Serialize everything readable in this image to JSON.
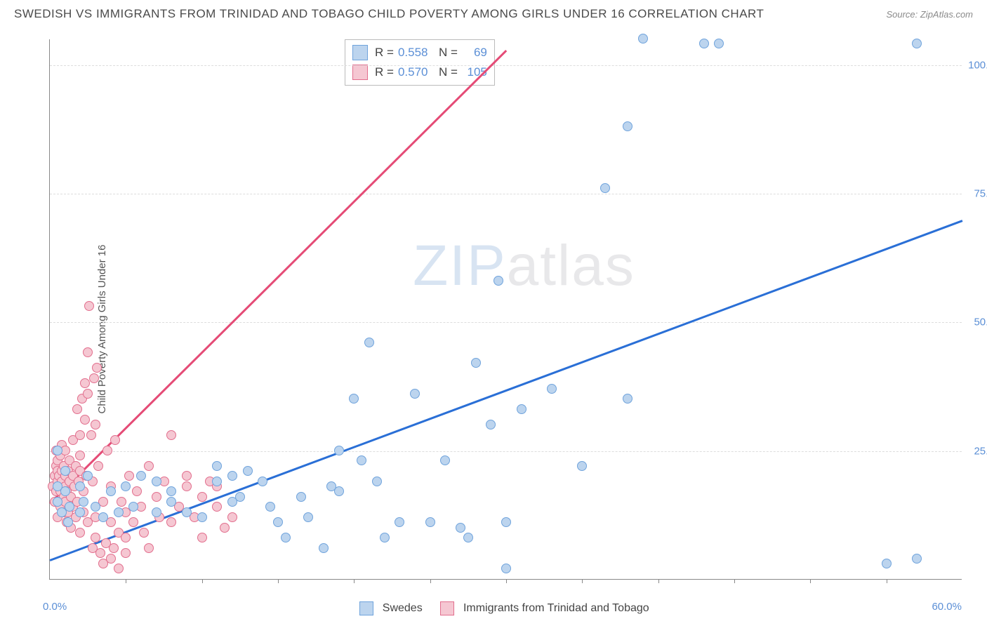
{
  "title": "SWEDISH VS IMMIGRANTS FROM TRINIDAD AND TOBAGO CHILD POVERTY AMONG GIRLS UNDER 16 CORRELATION CHART",
  "source": "Source: ZipAtlas.com",
  "y_axis_label": "Child Poverty Among Girls Under 16",
  "watermark_a": "ZIP",
  "watermark_b": "atlas",
  "chart": {
    "type": "scatter",
    "xlim": [
      0,
      60
    ],
    "ylim": [
      0,
      105
    ],
    "y_ticks": [
      25,
      50,
      75,
      100
    ],
    "y_tick_labels": [
      "25.0%",
      "50.0%",
      "75.0%",
      "100.0%"
    ],
    "x_minor_start": 5,
    "x_minor_step": 5,
    "x_first_label": "0.0%",
    "x_last_label": "60.0%",
    "x_tick_positions": [
      5,
      10,
      15,
      20,
      25,
      30,
      35,
      40,
      45,
      50,
      55
    ],
    "grid_color": "#dddddd",
    "axis_color": "#888888",
    "background": "#ffffff",
    "marker_size": 14,
    "series": [
      {
        "name": "Swedes",
        "color_fill": "#bcd4ee",
        "color_stroke": "#6fa3dc",
        "r_value": "0.558",
        "n_value": "69",
        "trend": {
          "x1": 0,
          "y1": 4,
          "x2": 60,
          "y2": 70,
          "color": "#2a6fd6",
          "width": 2.5
        },
        "points": [
          [
            0.5,
            18
          ],
          [
            0.5,
            25
          ],
          [
            0.5,
            15
          ],
          [
            0.8,
            13
          ],
          [
            1,
            17
          ],
          [
            1,
            21
          ],
          [
            1.2,
            11
          ],
          [
            1.3,
            14
          ],
          [
            2,
            18
          ],
          [
            2,
            13
          ],
          [
            2.2,
            15
          ],
          [
            2.5,
            20
          ],
          [
            3,
            14
          ],
          [
            3.5,
            12
          ],
          [
            4,
            17
          ],
          [
            4.5,
            13
          ],
          [
            5,
            18
          ],
          [
            5.5,
            14
          ],
          [
            6,
            20
          ],
          [
            7,
            19
          ],
          [
            7,
            13
          ],
          [
            8,
            15
          ],
          [
            8,
            17
          ],
          [
            9,
            13
          ],
          [
            10,
            12
          ],
          [
            11,
            19
          ],
          [
            11,
            22
          ],
          [
            12,
            20
          ],
          [
            12,
            15
          ],
          [
            12.5,
            16
          ],
          [
            13,
            21
          ],
          [
            14,
            19
          ],
          [
            14.5,
            14
          ],
          [
            15,
            11
          ],
          [
            15.5,
            8
          ],
          [
            16.5,
            16
          ],
          [
            17,
            12
          ],
          [
            18,
            6
          ],
          [
            18.5,
            18
          ],
          [
            19,
            17
          ],
          [
            19,
            25
          ],
          [
            20,
            35
          ],
          [
            20.5,
            23
          ],
          [
            21,
            46
          ],
          [
            21.5,
            19
          ],
          [
            22,
            8
          ],
          [
            23,
            11
          ],
          [
            24,
            36
          ],
          [
            25,
            11
          ],
          [
            26,
            23
          ],
          [
            27,
            10
          ],
          [
            27.5,
            8
          ],
          [
            28,
            42
          ],
          [
            29,
            30
          ],
          [
            29.5,
            58
          ],
          [
            30,
            11
          ],
          [
            30,
            2
          ],
          [
            31,
            33
          ],
          [
            33,
            37
          ],
          [
            35,
            22
          ],
          [
            36.5,
            76
          ],
          [
            38,
            35
          ],
          [
            38,
            88
          ],
          [
            39,
            105
          ],
          [
            43,
            104
          ],
          [
            44,
            104
          ],
          [
            55,
            3
          ],
          [
            57,
            104
          ],
          [
            57,
            4
          ]
        ]
      },
      {
        "name": "Immigrants from Trinidad and Tobago",
        "color_fill": "#f5c7d2",
        "color_stroke": "#e26e8d",
        "r_value": "0.570",
        "n_value": "105",
        "trend": {
          "x1": 0,
          "y1": 15,
          "x2": 30,
          "y2": 103,
          "color": "#e54b76",
          "width": 2.5
        },
        "points": [
          [
            0.2,
            18
          ],
          [
            0.3,
            15
          ],
          [
            0.3,
            20
          ],
          [
            0.4,
            17
          ],
          [
            0.4,
            22
          ],
          [
            0.4,
            25
          ],
          [
            0.5,
            12
          ],
          [
            0.5,
            19
          ],
          [
            0.5,
            21
          ],
          [
            0.5,
            23
          ],
          [
            0.6,
            15
          ],
          [
            0.6,
            18
          ],
          [
            0.6,
            20
          ],
          [
            0.7,
            14
          ],
          [
            0.7,
            24
          ],
          [
            0.7,
            17
          ],
          [
            0.8,
            19
          ],
          [
            0.8,
            21
          ],
          [
            0.8,
            26
          ],
          [
            0.9,
            16
          ],
          [
            0.9,
            13
          ],
          [
            0.9,
            22
          ],
          [
            1,
            18
          ],
          [
            1,
            20
          ],
          [
            1,
            25
          ],
          [
            1,
            15
          ],
          [
            1.1,
            11
          ],
          [
            1.1,
            17
          ],
          [
            1.2,
            21
          ],
          [
            1.2,
            13
          ],
          [
            1.3,
            19
          ],
          [
            1.3,
            23
          ],
          [
            1.4,
            10
          ],
          [
            1.4,
            16
          ],
          [
            1.5,
            20
          ],
          [
            1.5,
            14
          ],
          [
            1.5,
            27
          ],
          [
            1.6,
            18
          ],
          [
            1.7,
            12
          ],
          [
            1.7,
            22
          ],
          [
            1.8,
            15
          ],
          [
            1.8,
            33
          ],
          [
            1.9,
            19
          ],
          [
            2,
            21
          ],
          [
            2,
            9
          ],
          [
            2,
            28
          ],
          [
            2,
            24
          ],
          [
            2.1,
            35
          ],
          [
            2.2,
            17
          ],
          [
            2.2,
            13
          ],
          [
            2.3,
            38
          ],
          [
            2.3,
            31
          ],
          [
            2.4,
            20
          ],
          [
            2.5,
            36
          ],
          [
            2.5,
            44
          ],
          [
            2.5,
            11
          ],
          [
            2.6,
            53
          ],
          [
            2.7,
            28
          ],
          [
            2.8,
            6
          ],
          [
            2.8,
            19
          ],
          [
            2.9,
            39
          ],
          [
            3,
            12
          ],
          [
            3,
            8
          ],
          [
            3,
            30
          ],
          [
            3.1,
            41
          ],
          [
            3.2,
            22
          ],
          [
            3.3,
            5
          ],
          [
            3.5,
            3
          ],
          [
            3.5,
            15
          ],
          [
            3.7,
            7
          ],
          [
            3.8,
            25
          ],
          [
            4,
            18
          ],
          [
            4,
            4
          ],
          [
            4,
            11
          ],
          [
            4.2,
            6
          ],
          [
            4.3,
            27
          ],
          [
            4.5,
            2
          ],
          [
            4.5,
            9
          ],
          [
            4.7,
            15
          ],
          [
            5,
            13
          ],
          [
            5,
            8
          ],
          [
            5,
            5
          ],
          [
            5.2,
            20
          ],
          [
            5.5,
            11
          ],
          [
            5.7,
            17
          ],
          [
            6,
            14
          ],
          [
            6.2,
            9
          ],
          [
            6.5,
            22
          ],
          [
            6.5,
            6
          ],
          [
            7,
            16
          ],
          [
            7.2,
            12
          ],
          [
            7.5,
            19
          ],
          [
            8,
            11
          ],
          [
            8,
            28
          ],
          [
            8.5,
            14
          ],
          [
            9,
            18
          ],
          [
            9,
            20
          ],
          [
            9.5,
            12
          ],
          [
            10,
            16
          ],
          [
            10,
            8
          ],
          [
            10.5,
            19
          ],
          [
            11,
            14
          ],
          [
            11,
            18
          ],
          [
            11.5,
            10
          ],
          [
            12,
            12
          ]
        ]
      }
    ]
  },
  "legend_bottom": {
    "series1_label": "Swedes",
    "series2_label": "Immigrants from Trinidad and Tobago"
  },
  "stats_labels": {
    "r": "R =",
    "n": "N ="
  }
}
